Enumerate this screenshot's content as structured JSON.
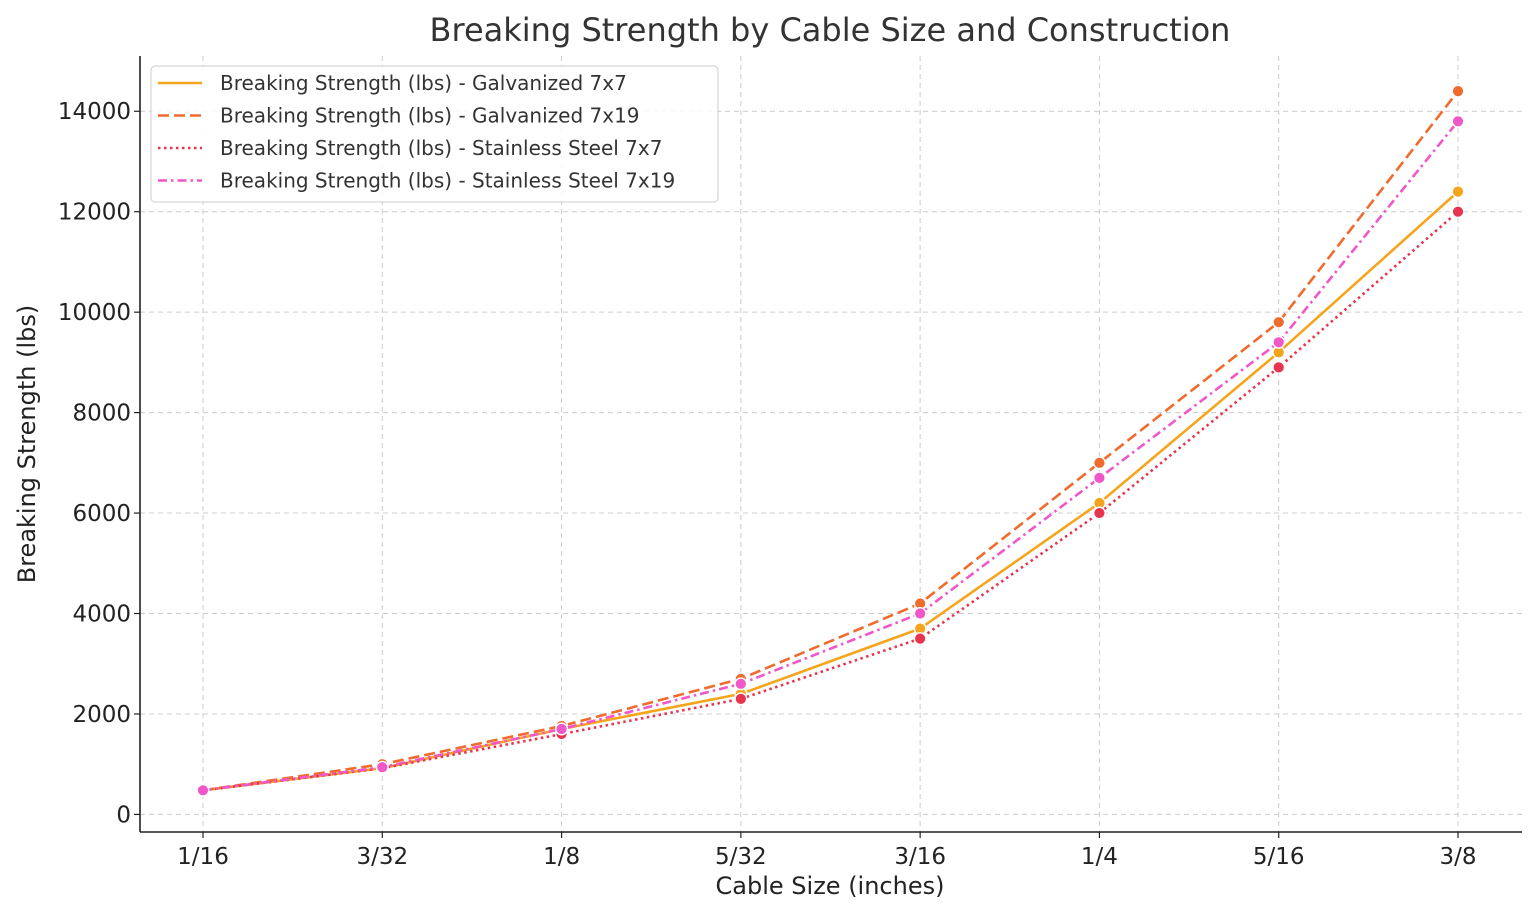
{
  "chart_data": {
    "type": "line",
    "title": "Breaking Strength by Cable Size and Construction",
    "xlabel": "Cable Size (inches)",
    "ylabel": "Breaking Strength (lbs)",
    "categories": [
      "1/16",
      "3/32",
      "1/8",
      "5/32",
      "3/16",
      "1/4",
      "5/16",
      "3/8"
    ],
    "yticks": [
      0,
      2000,
      4000,
      6000,
      8000,
      10000,
      12000,
      14000
    ],
    "ylim": [
      -350,
      15100
    ],
    "grid": true,
    "legend_position": "top-left",
    "series": [
      {
        "name": "Breaking Strength (lbs) - Galvanized 7x7",
        "color": "#f5a51c",
        "line_style": "solid",
        "values": [
          480,
          920,
          1700,
          2400,
          3700,
          6200,
          9200,
          12400
        ]
      },
      {
        "name": "Breaking Strength (lbs) - Galvanized 7x19",
        "color": "#ef6b2e",
        "line_style": "dashed",
        "values": [
          480,
          1000,
          1760,
          2700,
          4200,
          7000,
          9800,
          14400
        ]
      },
      {
        "name": "Breaking Strength (lbs) - Stainless Steel 7x7",
        "color": "#e8344e",
        "line_style": "dotted",
        "values": [
          480,
          920,
          1600,
          2300,
          3500,
          6000,
          8900,
          12000
        ]
      },
      {
        "name": "Breaking Strength (lbs) - Stainless Steel 7x19",
        "color": "#f057c8",
        "line_style": "dashdot",
        "values": [
          480,
          940,
          1700,
          2600,
          4000,
          6700,
          9400,
          13800
        ]
      }
    ]
  }
}
